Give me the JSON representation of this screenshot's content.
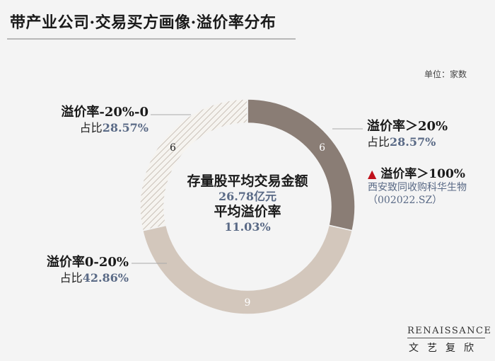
{
  "title": "带产业公司·交易买方画像·溢价率分布",
  "unit": "单位：家数",
  "chart_data": {
    "type": "pie",
    "donut": true,
    "slices": [
      {
        "label": "溢价率＞20%",
        "value": 6,
        "share_label": "占比",
        "share": "28.57%",
        "color": "#8a7d75",
        "hatched": false
      },
      {
        "label": "溢价率0-20%",
        "value": 9,
        "share_label": "占比",
        "share": "42.86%",
        "color": "#d3c7bc",
        "hatched": false
      },
      {
        "label": "溢价率-20%-0",
        "value": 6,
        "share_label": "占比",
        "share": "28.57%",
        "color": "#f1eee9",
        "hatched": true
      }
    ],
    "center": {
      "line1": "存量股平均交易金额",
      "line2": "26.78亿元",
      "line3": "平均溢价率",
      "line4": "11.03%"
    }
  },
  "note": {
    "title": "溢价率＞100%",
    "company": "西安致同收购科华生物",
    "code": "（002022.SZ）",
    "marker_color": "#c0101a"
  },
  "logo": {
    "en": "RENAISSANCE",
    "cn": "文艺复欣"
  }
}
